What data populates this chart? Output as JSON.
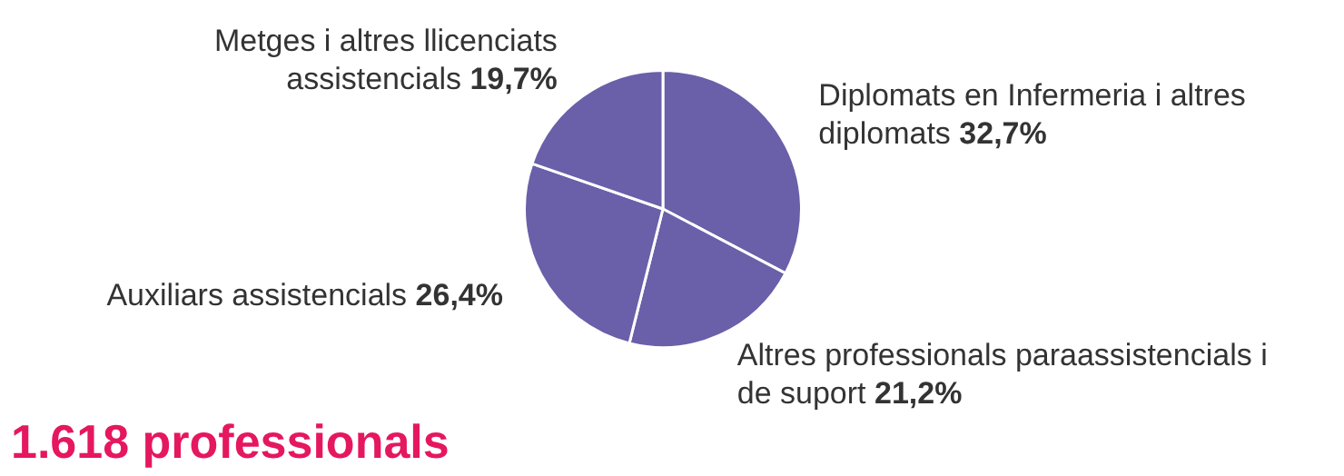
{
  "chart_data": {
    "type": "pie",
    "title": "1.618 professionals",
    "categories": [
      "Diplomats en Infermeria i altres diplomats",
      "Altres professionals paraassistencials i de suport",
      "Auxiliars assistencials",
      "Metges i altres llicenciats assistencials"
    ],
    "values": [
      32.7,
      21.2,
      26.4,
      19.7
    ],
    "value_labels": [
      "32,7%",
      "21,2%",
      "26,4%",
      "19,7%"
    ],
    "colors": [
      "#6a5fa9",
      "#6a5fa9",
      "#6a5fa9",
      "#6a5fa9"
    ],
    "legend": false
  }
}
